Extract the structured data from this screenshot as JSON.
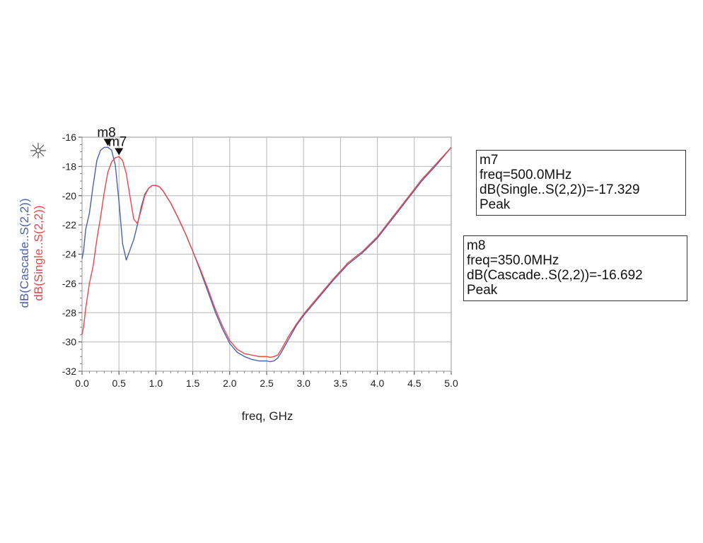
{
  "chart_data": {
    "type": "line",
    "title": "",
    "xlabel": "freq, GHz",
    "ylabel_lines": [
      "dB(Cascade..S(2,2))",
      "dB(Single..S(2,2))"
    ],
    "xlim": [
      0,
      5
    ],
    "ylim": [
      -32,
      -16
    ],
    "x_ticks": [
      "0.0",
      "0.5",
      "1.0",
      "1.5",
      "2.0",
      "2.5",
      "3.0",
      "3.5",
      "4.0",
      "4.5",
      "5.0"
    ],
    "y_ticks": [
      "-16",
      "-18",
      "-20",
      "-22",
      "-24",
      "-26",
      "-28",
      "-30",
      "-32"
    ],
    "grid": true,
    "series": [
      {
        "name": "dB(Cascade..S(2,2))",
        "color": "#4a62ad",
        "x": [
          0.0,
          0.02,
          0.05,
          0.1,
          0.15,
          0.2,
          0.25,
          0.3,
          0.35,
          0.4,
          0.45,
          0.5,
          0.55,
          0.6,
          0.65,
          0.7,
          0.75,
          0.8,
          0.85,
          0.9,
          0.95,
          1.0,
          1.05,
          1.1,
          1.2,
          1.3,
          1.4,
          1.5,
          1.6,
          1.7,
          1.8,
          1.9,
          2.0,
          2.1,
          2.2,
          2.3,
          2.4,
          2.5,
          2.55,
          2.6,
          2.65,
          2.7,
          2.8,
          2.9,
          3.0,
          3.2,
          3.4,
          3.6,
          3.8,
          4.0,
          4.2,
          4.4,
          4.6,
          4.8,
          5.0
        ],
        "values": [
          -24.3,
          -23.8,
          -22.3,
          -21.2,
          -19.3,
          -17.6,
          -16.9,
          -16.7,
          -16.69,
          -16.9,
          -17.9,
          -20.4,
          -23.3,
          -24.4,
          -23.7,
          -23.0,
          -22.0,
          -20.8,
          -19.9,
          -19.5,
          -19.3,
          -19.3,
          -19.4,
          -19.7,
          -20.5,
          -21.5,
          -22.6,
          -23.8,
          -25.1,
          -26.5,
          -27.9,
          -29.1,
          -30.1,
          -30.7,
          -31.0,
          -31.2,
          -31.3,
          -31.3,
          -31.35,
          -31.3,
          -31.1,
          -30.7,
          -29.8,
          -28.9,
          -28.2,
          -27.0,
          -25.8,
          -24.7,
          -23.9,
          -22.9,
          -21.6,
          -20.3,
          -19.0,
          -17.9,
          -16.7
        ]
      },
      {
        "name": "dB(Single..S(2,2))",
        "color": "#e8474d",
        "x": [
          0.0,
          0.02,
          0.05,
          0.1,
          0.15,
          0.2,
          0.25,
          0.3,
          0.35,
          0.4,
          0.45,
          0.5,
          0.55,
          0.6,
          0.65,
          0.7,
          0.75,
          0.8,
          0.85,
          0.9,
          0.95,
          1.0,
          1.05,
          1.1,
          1.2,
          1.3,
          1.4,
          1.5,
          1.6,
          1.7,
          1.8,
          1.9,
          2.0,
          2.1,
          2.2,
          2.3,
          2.4,
          2.5,
          2.55,
          2.6,
          2.65,
          2.7,
          2.8,
          2.9,
          3.0,
          3.2,
          3.4,
          3.6,
          3.8,
          4.0,
          4.2,
          4.4,
          4.6,
          4.8,
          5.0
        ],
        "values": [
          -29.5,
          -29.0,
          -27.7,
          -26.0,
          -24.8,
          -23.0,
          -21.5,
          -19.8,
          -18.4,
          -17.7,
          -17.4,
          -17.33,
          -17.6,
          -18.5,
          -20.1,
          -21.6,
          -21.9,
          -21.0,
          -20.0,
          -19.5,
          -19.3,
          -19.3,
          -19.4,
          -19.7,
          -20.5,
          -21.5,
          -22.6,
          -23.8,
          -25.0,
          -26.3,
          -27.7,
          -28.9,
          -29.9,
          -30.5,
          -30.8,
          -30.9,
          -31.0,
          -31.0,
          -31.05,
          -31.0,
          -30.9,
          -30.5,
          -29.6,
          -28.8,
          -28.1,
          -26.9,
          -25.7,
          -24.6,
          -23.8,
          -22.8,
          -21.5,
          -20.2,
          -18.9,
          -17.8,
          -16.7
        ]
      }
    ],
    "markers": [
      {
        "id": "m8",
        "x": 0.35,
        "y": -16.692,
        "series": 0
      },
      {
        "id": "m7",
        "x": 0.5,
        "y": -17.329,
        "series": 1
      }
    ]
  },
  "marker_boxes": {
    "m7": {
      "name": "m7",
      "freq": "freq=500.0MHz",
      "value": "dB(Single..S(2,2))=-17.329",
      "type": "Peak"
    },
    "m8": {
      "name": "m8",
      "freq": "freq=350.0MHz",
      "value": "dB(Cascade..S(2,2))=-16.692",
      "type": "Peak"
    }
  }
}
